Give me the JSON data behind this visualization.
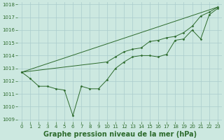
{
  "background_color": "#cce8e0",
  "grid_color": "#aacccc",
  "line_color": "#2d6b2d",
  "title": "Graphe pression niveau de la mer (hPa)",
  "xlim": [
    -0.5,
    23.5
  ],
  "ylim": [
    1008.8,
    1018.2
  ],
  "yticks": [
    1009,
    1010,
    1011,
    1012,
    1013,
    1014,
    1015,
    1016,
    1017,
    1018
  ],
  "xticks": [
    0,
    1,
    2,
    3,
    4,
    5,
    6,
    7,
    8,
    9,
    10,
    11,
    12,
    13,
    14,
    15,
    16,
    17,
    18,
    19,
    20,
    21,
    22,
    23
  ],
  "line1_x": [
    0,
    1,
    2,
    3,
    4,
    5,
    6,
    7,
    8,
    9,
    10,
    11,
    12,
    13,
    14,
    15,
    16,
    17,
    18,
    19,
    20,
    21,
    22,
    23
  ],
  "line1_y": [
    1012.7,
    1012.2,
    1011.6,
    1011.6,
    1011.4,
    1011.3,
    1009.3,
    1011.6,
    1011.4,
    1011.4,
    1012.1,
    1013.0,
    1013.5,
    1013.9,
    1014.0,
    1014.0,
    1013.9,
    1014.1,
    1015.2,
    1015.3,
    1016.0,
    1015.3,
    1017.2,
    1017.7
  ],
  "line2_x": [
    0,
    23
  ],
  "line2_y": [
    1012.7,
    1017.8
  ],
  "line3_x": [
    0,
    10,
    11,
    12,
    13,
    14,
    15,
    16,
    17,
    18,
    19,
    20,
    21,
    22,
    23
  ],
  "line3_y": [
    1012.7,
    1013.5,
    1013.9,
    1014.3,
    1014.5,
    1014.6,
    1015.1,
    1015.2,
    1015.4,
    1015.5,
    1015.8,
    1016.3,
    1017.1,
    1017.4,
    1017.8
  ],
  "title_fontsize": 7,
  "tick_fontsize": 5,
  "title_color": "#2d6b2d",
  "tick_color": "#2d6b2d",
  "figsize": [
    3.2,
    2.0
  ],
  "dpi": 100
}
